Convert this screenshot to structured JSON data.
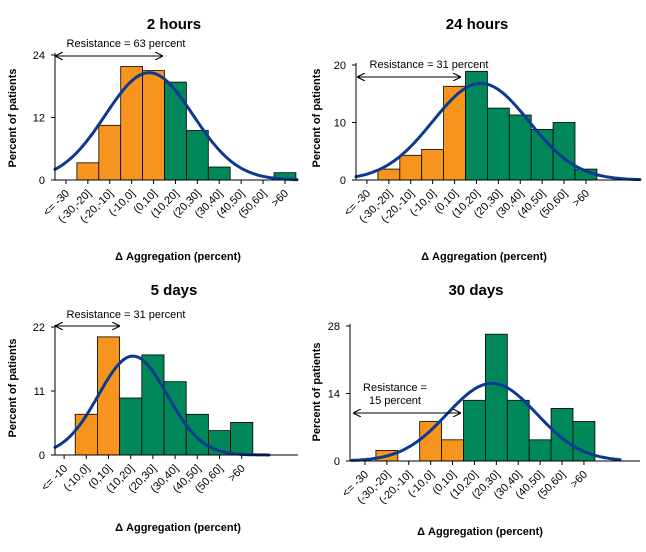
{
  "figure": {
    "background": "#ffffff"
  },
  "colors": {
    "resistant": "#f7941d",
    "sensitive": "#00875a",
    "curve": "#0b3a8f",
    "bar_border": "#000000"
  },
  "chart_data": [
    {
      "type": "bar",
      "title": "2 hours",
      "xlabel": "Δ Aggregation (percent)",
      "ylabel": "Percent of patients",
      "ylim": [
        0,
        24
      ],
      "yticks": [
        0,
        12,
        24
      ],
      "categories": [
        "<= -30",
        "(-30,-20]",
        "(-20,-10]",
        "(-10,0]",
        "(0,10]",
        "(10,20]",
        "(20,30]",
        "(30,40]",
        "(40,50]",
        "(50,60]",
        ">60"
      ],
      "values": [
        0,
        3.3,
        10.5,
        21.8,
        21,
        18.8,
        9.5,
        2.5,
        0,
        0,
        1.4
      ],
      "bar_groups": [
        "none",
        "resistant",
        "resistant",
        "resistant",
        "resistant",
        "sensitive",
        "sensitive",
        "sensitive",
        "none",
        "none",
        "sensitive"
      ],
      "curve_peak": 20.6,
      "annotation": {
        "lines": [
          "Resistance = 63 percent"
        ],
        "percent": 63
      },
      "grid": false
    },
    {
      "type": "bar",
      "title": "24 hours",
      "xlabel": "Δ Aggregation (percent)",
      "ylabel": "Percent of patients",
      "ylim": [
        0,
        20
      ],
      "yticks": [
        0,
        10,
        20
      ],
      "categories": [
        "<= -30",
        "(-30,-20]",
        "(-20,-10]",
        "(-10,0]",
        "(0,10]",
        "(10,20]",
        "(20,30]",
        "(30,40]",
        "(40,50]",
        "(50,60]",
        ">60"
      ],
      "values": [
        0,
        1.9,
        4.3,
        5.3,
        16.3,
        18.9,
        12.5,
        11.3,
        8.8,
        10,
        1.9
      ],
      "bar_groups": [
        "none",
        "resistant",
        "resistant",
        "resistant",
        "resistant",
        "sensitive",
        "sensitive",
        "sensitive",
        "sensitive",
        "sensitive",
        "sensitive"
      ],
      "curve_peak": 16.8,
      "annotation": {
        "lines": [
          "Resistance = 31 percent"
        ],
        "percent": 31
      },
      "grid": false
    },
    {
      "type": "bar",
      "title": "5 days",
      "xlabel": "Δ Aggregation (percent)",
      "ylabel": "Percent of patients",
      "ylim": [
        0,
        22
      ],
      "yticks": [
        0,
        11,
        22
      ],
      "categories": [
        "<= -10",
        "(-10,0]",
        "(0,10]",
        "(10,20]",
        "(20,30]",
        "(30,40]",
        "(40,50]",
        "(50,60]",
        ">60"
      ],
      "values": [
        0,
        7,
        20.3,
        9.8,
        17.2,
        12.6,
        7,
        4.2,
        5.6
      ],
      "bar_groups": [
        "none",
        "resistant",
        "resistant",
        "sensitive",
        "sensitive",
        "sensitive",
        "sensitive",
        "sensitive",
        "sensitive"
      ],
      "curve_peak": 17,
      "annotation": {
        "lines": [
          "Resistance = 31 percent"
        ],
        "percent": 31
      },
      "grid": false
    },
    {
      "type": "bar",
      "title": "30 days",
      "xlabel": "Δ Aggregation (percent)",
      "ylabel": "Percent of patients",
      "ylim": [
        0,
        28
      ],
      "yticks": [
        0,
        14,
        28
      ],
      "categories": [
        "<= -30",
        "(-30,-20]",
        "(-20,-10]",
        "(-10,0]",
        "(0,10]",
        "(10,20]",
        "(20,30]",
        "(30,40]",
        "(40,50]",
        "(50,60]",
        ">60"
      ],
      "values": [
        0,
        2.2,
        0,
        8.2,
        4.4,
        12.6,
        26.3,
        12.6,
        4.4,
        10.9,
        8.2
      ],
      "bar_groups": [
        "none",
        "resistant",
        "none",
        "resistant",
        "resistant",
        "sensitive",
        "sensitive",
        "sensitive",
        "sensitive",
        "sensitive",
        "sensitive"
      ],
      "curve_peak": 16.1,
      "annotation": {
        "lines": [
          "Resistance =",
          "15 percent"
        ],
        "percent": 15
      },
      "grid": false
    }
  ]
}
